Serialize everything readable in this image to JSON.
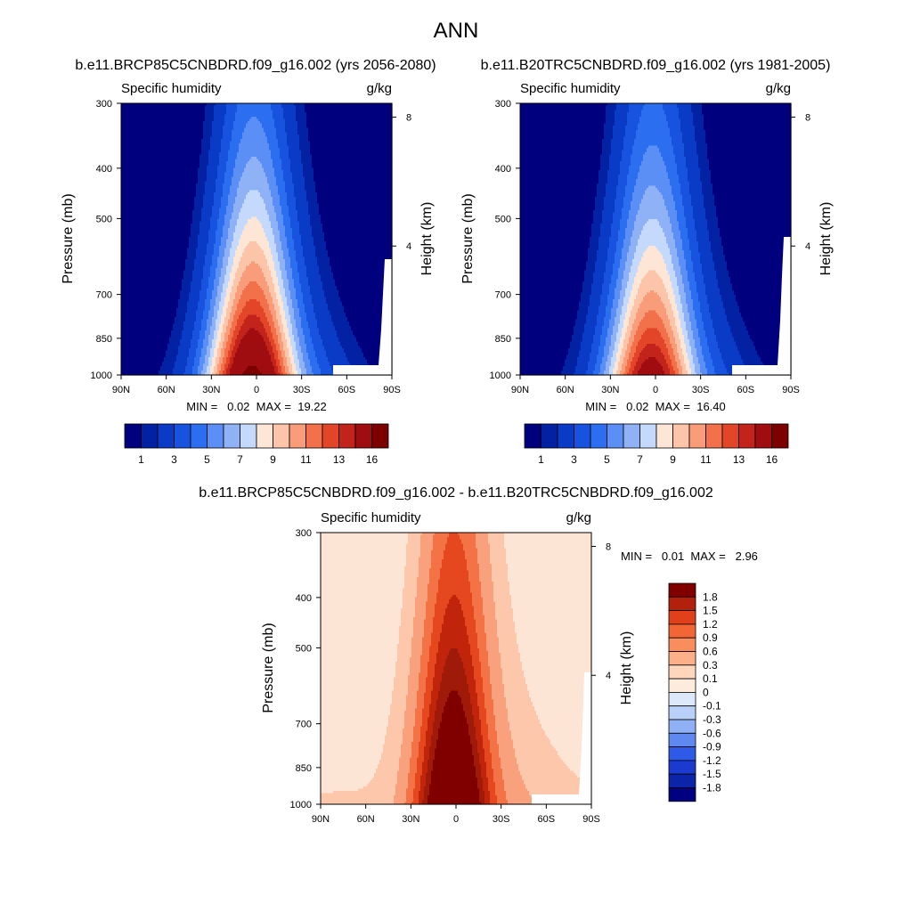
{
  "figure": {
    "title": "ANN"
  },
  "colors": {
    "palette12": [
      "#00007f",
      "#0321a3",
      "#0a3bc6",
      "#1853e0",
      "#2b6ef0",
      "#5b8ff5",
      "#8fb2f7",
      "#c4d9fb",
      "#fde6d6",
      "#fcc4a8",
      "#f99c79",
      "#f2704a",
      "#e24528",
      "#c2231a",
      "#9f0d10",
      "#7d0000"
    ],
    "diff": [
      "#000080",
      "#0b249a",
      "#1a3ed6",
      "#2f5af0",
      "#5a86f5",
      "#93b4fb",
      "#c8dcfd",
      "#fde5d6",
      "#fcc7ab",
      "#f9a17c",
      "#f37246",
      "#e5481f",
      "#c0240b",
      "#8b0000"
    ]
  },
  "chart_data": [
    {
      "type": "contour",
      "title": "b.e11.BRCP85C5CNBDRD.f09_g16.002 (yrs 2056-2080)",
      "left_label": "Specific humidity",
      "right_label": "g/kg",
      "xlabel": "",
      "ylabel": "Pressure (mb)",
      "ylabel_right": "Height (km)",
      "x_ticks": [
        "90N",
        "60N",
        "30N",
        "0",
        "30S",
        "60S",
        "90S"
      ],
      "x_values": [
        90,
        60,
        30,
        0,
        -30,
        -60,
        -90
      ],
      "y_ticks": [
        "300",
        "400",
        "500",
        "700",
        "850",
        "1000"
      ],
      "y_values": [
        300,
        400,
        500,
        700,
        850,
        1000
      ],
      "ylim": [
        300,
        1000
      ],
      "right_ticks": [
        "8",
        "4"
      ],
      "right_values": [
        8,
        4
      ],
      "stats": "MIN =   0.02  MAX =  19.22",
      "min": 0.02,
      "max": 19.22,
      "peak_scale": 1.0,
      "colorbar_ticks": [
        "1",
        "3",
        "5",
        "7",
        "9",
        "11",
        "13",
        "16"
      ],
      "levels": [
        0.5,
        1,
        2,
        3,
        4,
        5,
        6,
        7,
        8,
        9,
        10,
        11,
        12,
        13,
        16
      ]
    },
    {
      "type": "contour",
      "title": "b.e11.B20TRC5CNBDRD.f09_g16.002 (yrs 1981-2005)",
      "left_label": "Specific humidity",
      "right_label": "g/kg",
      "xlabel": "",
      "ylabel": "Pressure (mb)",
      "ylabel_right": "Height (km)",
      "x_ticks": [
        "90N",
        "60N",
        "30N",
        "0",
        "30S",
        "60S",
        "90S"
      ],
      "x_values": [
        90,
        60,
        30,
        0,
        -30,
        -60,
        -90
      ],
      "y_ticks": [
        "300",
        "400",
        "500",
        "700",
        "850",
        "1000"
      ],
      "y_values": [
        300,
        400,
        500,
        700,
        850,
        1000
      ],
      "ylim": [
        300,
        1000
      ],
      "right_ticks": [
        "8",
        "4"
      ],
      "right_values": [
        8,
        4
      ],
      "stats": "MIN =   0.02  MAX =  16.40",
      "min": 0.02,
      "max": 16.4,
      "peak_scale": 0.853,
      "colorbar_ticks": [
        "1",
        "3",
        "5",
        "7",
        "9",
        "11",
        "13",
        "16"
      ],
      "levels": [
        0.5,
        1,
        2,
        3,
        4,
        5,
        6,
        7,
        8,
        9,
        10,
        11,
        12,
        13,
        16
      ]
    },
    {
      "type": "contour",
      "title": "b.e11.BRCP85C5CNBDRD.f09_g16.002 - b.e11.B20TRC5CNBDRD.f09_g16.002",
      "left_label": "Specific humidity",
      "right_label": "g/kg",
      "xlabel": "",
      "ylabel": "Pressure (mb)",
      "ylabel_right": "Height (km)",
      "x_ticks": [
        "90N",
        "60N",
        "30N",
        "0",
        "30S",
        "60S",
        "90S"
      ],
      "x_values": [
        90,
        60,
        30,
        0,
        -30,
        -60,
        -90
      ],
      "y_ticks": [
        "300",
        "400",
        "500",
        "700",
        "850",
        "1000"
      ],
      "y_values": [
        300,
        400,
        500,
        700,
        850,
        1000
      ],
      "ylim": [
        300,
        1000
      ],
      "right_ticks": [
        "8",
        "4"
      ],
      "right_values": [
        8,
        4
      ],
      "stats": "MIN =   0.01  MAX =   2.96",
      "min": 0.01,
      "max": 2.96,
      "colorbar_ticks": [
        "1.8",
        "1.5",
        "1.2",
        "0.9",
        "0.6",
        "0.3",
        "0.1",
        "0",
        "-0.1",
        "-0.3",
        "-0.6",
        "-0.9",
        "-1.2",
        "-1.5",
        "-1.8"
      ],
      "levels": [
        -1.8,
        -1.5,
        -1.2,
        -0.9,
        -0.6,
        -0.3,
        -0.1,
        0,
        0.1,
        0.3,
        0.6,
        0.9,
        1.2,
        1.5,
        1.8
      ]
    }
  ]
}
